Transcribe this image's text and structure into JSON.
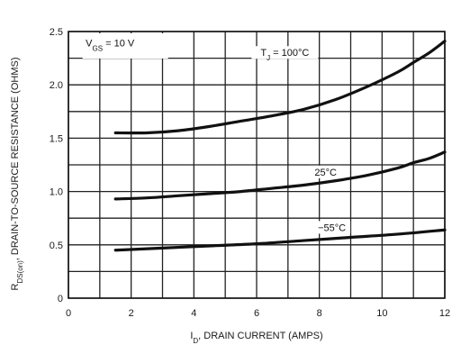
{
  "chart_data": {
    "type": "line",
    "xlabel": {
      "pre": "I",
      "sub": "D",
      "post": ", DRAIN CURRENT (AMPS)"
    },
    "ylabel": {
      "pre": "R",
      "sub": "DS(on)",
      "post": ", DRAIN-TO-SOURCE RESISTANCE (OHMS)"
    },
    "xlim": [
      0,
      12
    ],
    "ylim": [
      0,
      2.5
    ],
    "xticks": [
      "0",
      "2",
      "4",
      "6",
      "8",
      "10",
      "12"
    ],
    "yticks": [
      "0",
      "0.5",
      "1.0",
      "1.5",
      "2.0",
      "2.5"
    ],
    "grid": true,
    "condition": {
      "pre": "V",
      "sub": "GS",
      "post": " = 10 V"
    },
    "series": [
      {
        "name": "T = 100°C",
        "label": {
          "pre": "T",
          "sub": "J",
          "post": " = 100°C"
        },
        "x": [
          1.5,
          2.5,
          3.5,
          4.5,
          5.5,
          6.5,
          7.5,
          8.5,
          9.5,
          10.5,
          11.0,
          11.5,
          12.0
        ],
        "y": [
          1.55,
          1.55,
          1.57,
          1.61,
          1.66,
          1.71,
          1.77,
          1.86,
          1.98,
          2.12,
          2.21,
          2.3,
          2.41
        ]
      },
      {
        "name": "25°C",
        "label": {
          "pre": "25°C",
          "sub": "",
          "post": ""
        },
        "x": [
          1.5,
          2.5,
          3.5,
          4.5,
          5.5,
          6.5,
          7.5,
          8.5,
          9.5,
          10.5,
          11.0,
          11.5,
          12.0
        ],
        "y": [
          0.93,
          0.94,
          0.96,
          0.98,
          1.0,
          1.03,
          1.06,
          1.1,
          1.15,
          1.22,
          1.27,
          1.31,
          1.37
        ]
      },
      {
        "name": "-55°C",
        "label": {
          "pre": "−55°C",
          "sub": "",
          "post": ""
        },
        "x": [
          1.5,
          3,
          4.5,
          6,
          7.5,
          9,
          10.5,
          12.0
        ],
        "y": [
          0.45,
          0.47,
          0.49,
          0.51,
          0.54,
          0.57,
          0.6,
          0.64
        ]
      }
    ]
  }
}
